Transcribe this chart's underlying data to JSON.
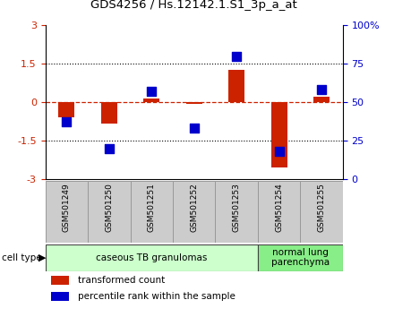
{
  "title": "GDS4256 / Hs.12142.1.S1_3p_a_at",
  "samples": [
    "GSM501249",
    "GSM501250",
    "GSM501251",
    "GSM501252",
    "GSM501253",
    "GSM501254",
    "GSM501255"
  ],
  "transformed_count": [
    -0.6,
    -0.85,
    0.15,
    -0.05,
    1.25,
    -2.55,
    0.2
  ],
  "percentile_rank": [
    37,
    20,
    57,
    33,
    80,
    18,
    58
  ],
  "ylim_left": [
    -3,
    3
  ],
  "ylim_right": [
    0,
    100
  ],
  "bar_color": "#cc2200",
  "dot_color": "#0000cc",
  "hline_color": "#cc2200",
  "dot_size": 45,
  "bar_width": 0.38,
  "groups": [
    {
      "label": "caseous TB granulomas",
      "n": 5,
      "color": "#ccffcc"
    },
    {
      "label": "normal lung\nparenchyma",
      "n": 2,
      "color": "#88ee88"
    }
  ],
  "legend_red": "transformed count",
  "legend_blue": "percentile rank within the sample",
  "cell_type_label": "cell type",
  "background_color": "#ffffff",
  "plot_bg_color": "#ffffff",
  "tick_label_color_left": "#cc2200",
  "tick_label_color_right": "#0000cc",
  "yticks_left": [
    -3,
    -1.5,
    0,
    1.5,
    3
  ],
  "ytick_labels_left": [
    "-3",
    "-1.5",
    "0",
    "1.5",
    "3"
  ],
  "yticks_right": [
    0,
    25,
    50,
    75,
    100
  ],
  "ytick_labels_right": [
    "0",
    "25",
    "50",
    "75",
    "100%"
  ],
  "gray_box_color": "#cccccc",
  "gray_box_edge": "#999999"
}
